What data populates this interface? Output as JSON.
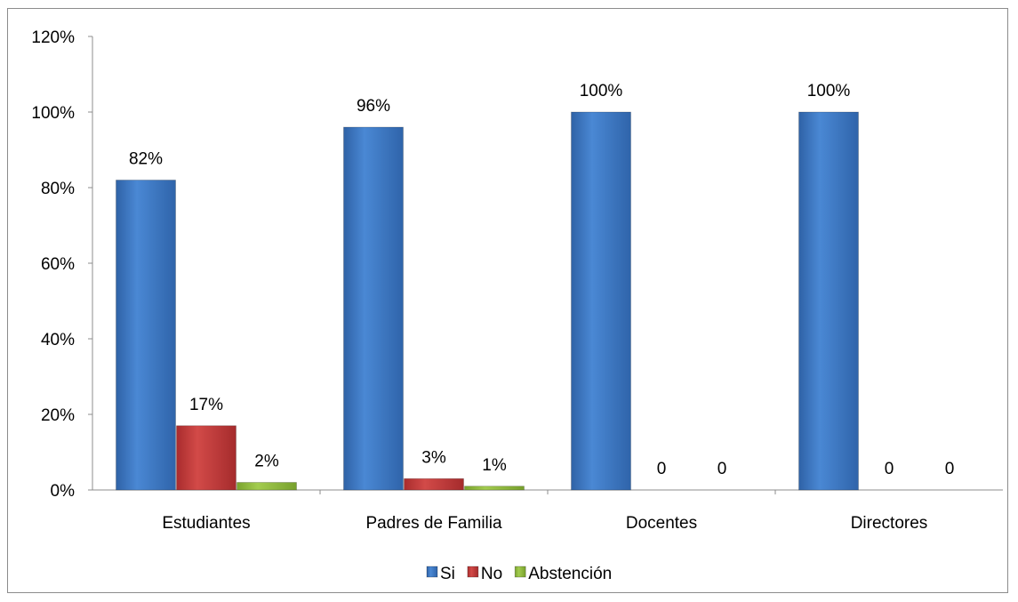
{
  "chart_data": {
    "type": "bar",
    "title": "",
    "xlabel": "",
    "ylabel": "",
    "categories": [
      "Estudiantes",
      "Padres de Familia",
      "Docentes",
      "Directores"
    ],
    "series": [
      {
        "name": "Si",
        "values": [
          82,
          96,
          100,
          100
        ],
        "labels": [
          "82%",
          "96%",
          "100%",
          "100%"
        ],
        "color": "#3c7ac6"
      },
      {
        "name": "No",
        "values": [
          17,
          3,
          0,
          0
        ],
        "labels": [
          "17%",
          "3%",
          "0",
          "0"
        ],
        "color": "#c0393a"
      },
      {
        "name": "Abstención",
        "values": [
          2,
          1,
          0,
          0
        ],
        "labels": [
          "2%",
          "1%",
          "0",
          "0"
        ],
        "color": "#8fb93d"
      }
    ],
    "ylim": [
      0,
      120
    ],
    "yticks": [
      "0%",
      "20%",
      "40%",
      "60%",
      "80%",
      "100%",
      "120%"
    ],
    "grid": false,
    "legend_position": "bottom"
  }
}
